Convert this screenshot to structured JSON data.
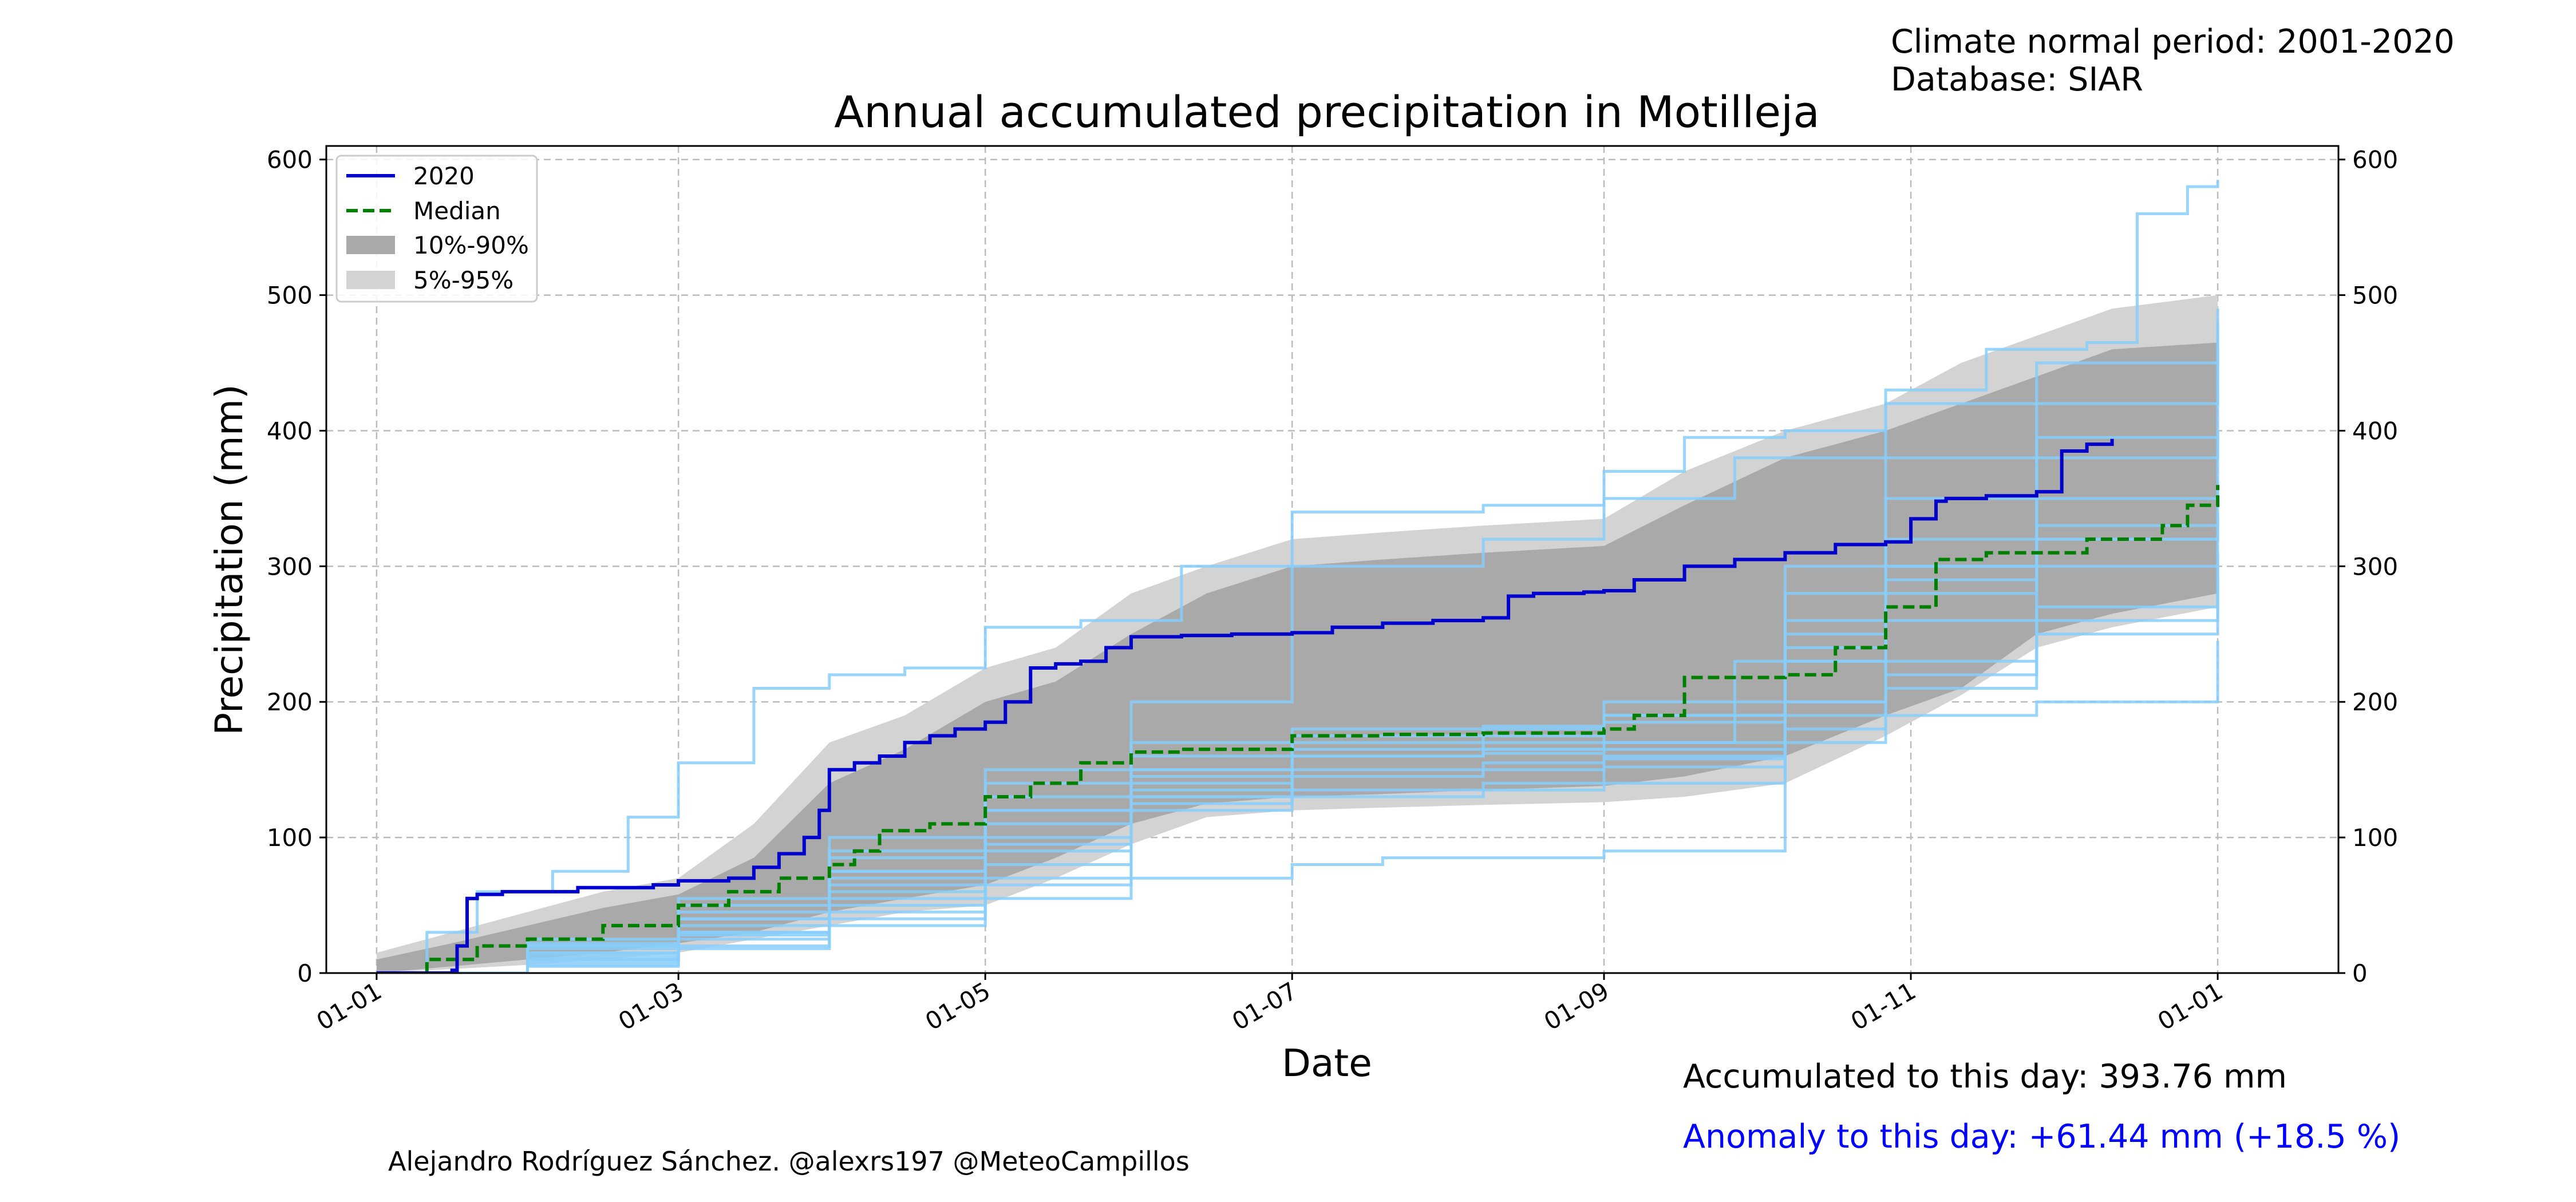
{
  "header": {
    "period_label": "Climate normal period: 2001-2020",
    "database_label": "Database: SIAR"
  },
  "footer": {
    "accumulated_label": "Accumulated to this day: 393.76 mm",
    "anomaly_label": "Anomaly to this day: +61.44 mm (+18.5 %)",
    "anomaly_color": "#0000ff",
    "credit": "Alejandro Rodríguez Sánchez. @alexrs197 @MeteoCampillos"
  },
  "chart_data": {
    "type": "line",
    "title": "Annual accumulated precipitation in Motilleja",
    "xlabel": "Date",
    "ylabel": "Precipitation (mm)",
    "x_range_days": [
      -10,
      390
    ],
    "ylim": [
      0,
      610
    ],
    "y_ticks": [
      0,
      100,
      200,
      300,
      400,
      500,
      600
    ],
    "x_ticks": [
      {
        "day": 0,
        "label": "01-01"
      },
      {
        "day": 60,
        "label": "01-03"
      },
      {
        "day": 121,
        "label": "01-05"
      },
      {
        "day": 182,
        "label": "01-07"
      },
      {
        "day": 244,
        "label": "01-09"
      },
      {
        "day": 305,
        "label": "01-11"
      },
      {
        "day": 366,
        "label": "01-01"
      }
    ],
    "grid": true,
    "right_axis": true,
    "legend_position": "top-left",
    "legend": [
      {
        "label": "2020",
        "kind": "line",
        "color": "#0000cd"
      },
      {
        "label": "Median",
        "kind": "dashed",
        "color": "#008000"
      },
      {
        "label": "10%-90%",
        "kind": "patch",
        "color": "#a9a9a9"
      },
      {
        "label": "5%-95%",
        "kind": "patch",
        "color": "#d3d3d3"
      }
    ],
    "colors": {
      "current": "#0000cd",
      "median": "#008000",
      "band_10_90": "#a9a9a9",
      "band_5_95": "#d3d3d3",
      "years": "#87cefa"
    },
    "band_5_95": {
      "x": [
        0,
        15,
        30,
        45,
        60,
        75,
        90,
        105,
        121,
        135,
        150,
        165,
        182,
        200,
        220,
        244,
        260,
        280,
        300,
        315,
        330,
        345,
        366
      ],
      "low": [
        0,
        3,
        6,
        10,
        15,
        25,
        35,
        45,
        50,
        70,
        95,
        115,
        120,
        122,
        124,
        126,
        130,
        140,
        175,
        205,
        240,
        255,
        270
      ],
      "high": [
        15,
        30,
        45,
        60,
        70,
        110,
        170,
        190,
        225,
        240,
        280,
        300,
        320,
        325,
        330,
        335,
        370,
        400,
        420,
        450,
        470,
        490,
        500
      ]
    },
    "band_10_90": {
      "x": [
        0,
        15,
        30,
        45,
        60,
        75,
        90,
        105,
        121,
        135,
        150,
        165,
        182,
        200,
        220,
        244,
        260,
        280,
        300,
        315,
        330,
        345,
        366
      ],
      "low": [
        0,
        5,
        10,
        15,
        22,
        30,
        45,
        55,
        65,
        85,
        110,
        125,
        130,
        132,
        135,
        138,
        145,
        160,
        190,
        210,
        250,
        265,
        280
      ],
      "high": [
        10,
        22,
        35,
        48,
        58,
        85,
        140,
        165,
        200,
        215,
        250,
        280,
        300,
        305,
        310,
        315,
        345,
        380,
        400,
        420,
        440,
        460,
        465
      ]
    },
    "years": [
      {
        "x": [
          0,
          10,
          20,
          35,
          50,
          60,
          75,
          90,
          105,
          121,
          140,
          160,
          182,
          200,
          220,
          244,
          260,
          280,
          300,
          320,
          340,
          350,
          360,
          366
        ],
        "y": [
          0,
          30,
          60,
          75,
          115,
          155,
          210,
          220,
          225,
          255,
          260,
          300,
          340,
          340,
          345,
          370,
          395,
          400,
          430,
          460,
          465,
          560,
          580,
          585
        ]
      },
      {
        "x": [
          0,
          30,
          60,
          90,
          121,
          150,
          182,
          200,
          244,
          280,
          300,
          330,
          366
        ],
        "y": [
          0,
          20,
          40,
          55,
          65,
          70,
          80,
          85,
          90,
          170,
          190,
          200,
          245
        ]
      },
      {
        "x": [
          0,
          30,
          60,
          90,
          121,
          150,
          182,
          220,
          244,
          270,
          300,
          330,
          366
        ],
        "y": [
          0,
          15,
          40,
          75,
          140,
          200,
          300,
          320,
          350,
          380,
          420,
          450,
          490
        ]
      },
      {
        "x": [
          0,
          30,
          60,
          90,
          121,
          150,
          182,
          220,
          244,
          280,
          300,
          330,
          366
        ],
        "y": [
          0,
          10,
          30,
          60,
          110,
          130,
          135,
          140,
          160,
          230,
          280,
          320,
          340
        ]
      },
      {
        "x": [
          0,
          30,
          60,
          90,
          121,
          150,
          182,
          220,
          244,
          270,
          300,
          330,
          366
        ],
        "y": [
          0,
          25,
          50,
          90,
          120,
          150,
          160,
          165,
          170,
          230,
          300,
          350,
          400
        ]
      },
      {
        "x": [
          0,
          30,
          60,
          90,
          121,
          150,
          182,
          220,
          244,
          280,
          300,
          330,
          366
        ],
        "y": [
          0,
          8,
          25,
          45,
          80,
          125,
          130,
          135,
          140,
          180,
          220,
          260,
          300
        ]
      },
      {
        "x": [
          0,
          30,
          60,
          90,
          121,
          150,
          182,
          220,
          244,
          280,
          300,
          330,
          366
        ],
        "y": [
          0,
          12,
          35,
          70,
          100,
          150,
          175,
          180,
          190,
          250,
          320,
          380,
          480
        ]
      },
      {
        "x": [
          0,
          30,
          60,
          90,
          121,
          150,
          182,
          220,
          244,
          280,
          300,
          330,
          366
        ],
        "y": [
          0,
          5,
          20,
          40,
          70,
          120,
          150,
          155,
          158,
          190,
          230,
          270,
          320
        ]
      },
      {
        "x": [
          0,
          30,
          60,
          90,
          121,
          150,
          182,
          220,
          244,
          280,
          300,
          330,
          366
        ],
        "y": [
          0,
          18,
          45,
          85,
          130,
          160,
          170,
          175,
          185,
          260,
          300,
          330,
          360
        ]
      },
      {
        "x": [
          0,
          30,
          60,
          90,
          121,
          150,
          182,
          220,
          244,
          280,
          300,
          330,
          366
        ],
        "y": [
          0,
          14,
          28,
          50,
          95,
          140,
          145,
          150,
          152,
          200,
          260,
          300,
          310
        ]
      },
      {
        "x": [
          0,
          30,
          60,
          90,
          121,
          150,
          182,
          220,
          244,
          280,
          300,
          330,
          366
        ],
        "y": [
          0,
          20,
          55,
          100,
          150,
          170,
          180,
          182,
          190,
          280,
          350,
          395,
          400
        ]
      },
      {
        "x": [
          0,
          30,
          60,
          90,
          121,
          150,
          182,
          220,
          244,
          280,
          300,
          330,
          366
        ],
        "y": [
          0,
          6,
          18,
          35,
          55,
          130,
          160,
          165,
          170,
          200,
          210,
          250,
          290
        ]
      },
      {
        "x": [
          0,
          30,
          60,
          90,
          121,
          150,
          182,
          220,
          244,
          280,
          300,
          330,
          366
        ],
        "y": [
          0,
          22,
          40,
          75,
          120,
          145,
          160,
          162,
          165,
          240,
          290,
          320,
          335
        ]
      },
      {
        "x": [
          0,
          30,
          60,
          90,
          121,
          150,
          182,
          220,
          244,
          280,
          300,
          330,
          366
        ],
        "y": [
          0,
          10,
          30,
          65,
          90,
          135,
          165,
          170,
          200,
          300,
          380,
          420,
          460
        ]
      }
    ],
    "median": {
      "x": [
        0,
        10,
        20,
        30,
        45,
        60,
        70,
        80,
        90,
        95,
        100,
        110,
        121,
        130,
        140,
        150,
        160,
        182,
        200,
        220,
        244,
        250,
        260,
        280,
        290,
        300,
        310,
        320,
        340,
        355,
        360,
        366
      ],
      "y": [
        0,
        10,
        20,
        25,
        35,
        50,
        60,
        70,
        80,
        90,
        105,
        110,
        130,
        140,
        155,
        163,
        165,
        175,
        176,
        177,
        180,
        190,
        218,
        220,
        240,
        270,
        305,
        310,
        320,
        330,
        345,
        360
      ]
    },
    "current": {
      "label": "2020",
      "x": [
        0,
        15,
        16,
        18,
        20,
        25,
        40,
        55,
        60,
        70,
        75,
        80,
        85,
        88,
        90,
        95,
        100,
        105,
        110,
        115,
        121,
        125,
        130,
        135,
        140,
        145,
        150,
        160,
        170,
        180,
        182,
        190,
        200,
        210,
        220,
        225,
        230,
        240,
        244,
        250,
        260,
        270,
        280,
        290,
        300,
        305,
        310,
        312,
        320,
        330,
        335,
        340,
        345
      ],
      "y": [
        0,
        2,
        20,
        55,
        58,
        60,
        63,
        65,
        68,
        70,
        78,
        88,
        100,
        120,
        150,
        155,
        160,
        170,
        175,
        180,
        185,
        200,
        225,
        228,
        230,
        240,
        248,
        249,
        250,
        250,
        251,
        255,
        258,
        260,
        262,
        278,
        280,
        281,
        282,
        290,
        300,
        305,
        310,
        316,
        318,
        335,
        348,
        350,
        352,
        355,
        385,
        390,
        394
      ]
    }
  }
}
